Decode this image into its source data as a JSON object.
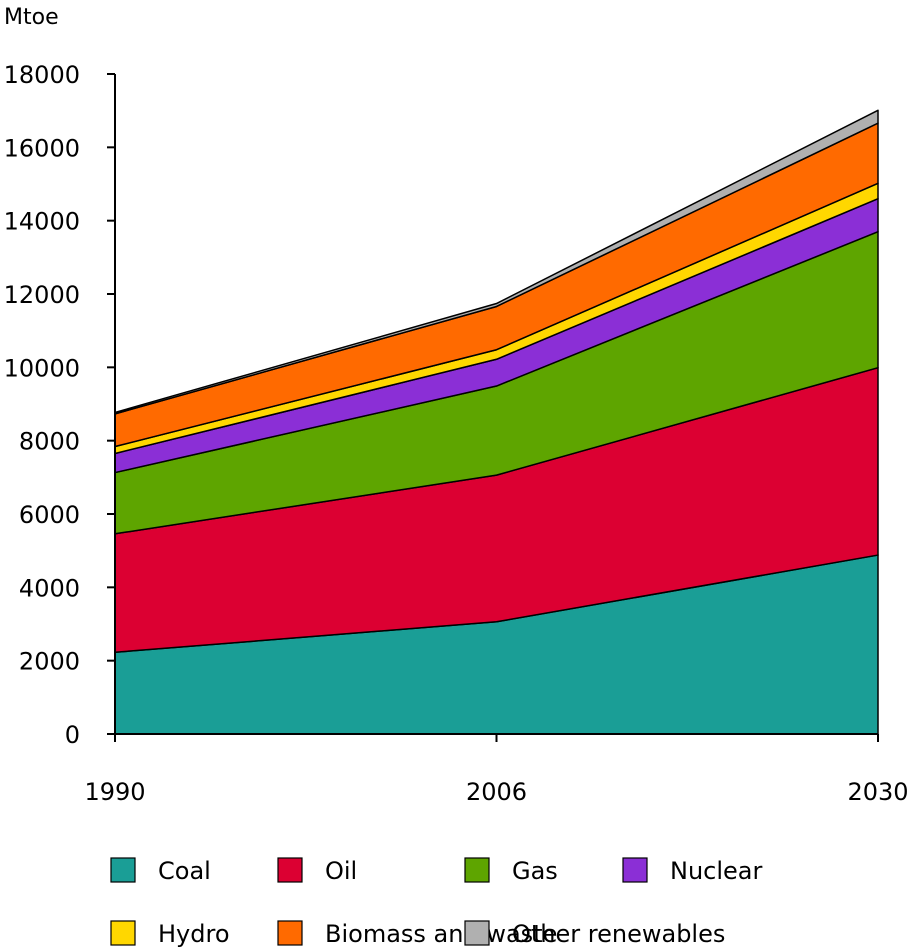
{
  "chart_data": {
    "type": "area",
    "stacked": true,
    "ylabel": "Mtoe",
    "x": [
      "1990",
      "2006",
      "2030"
    ],
    "ylim": [
      0,
      18000
    ],
    "yticks": [
      0,
      2000,
      4000,
      6000,
      8000,
      10000,
      12000,
      14000,
      16000,
      18000
    ],
    "series": [
      {
        "name": "Coal",
        "values": [
          2230,
          3060,
          4880
        ],
        "color": "#1a9e96"
      },
      {
        "name": "Oil",
        "values": [
          3230,
          4000,
          5110
        ],
        "color": "#dc0032"
      },
      {
        "name": "Gas",
        "values": [
          1670,
          2430,
          3710
        ],
        "color": "#5ea500"
      },
      {
        "name": "Nuclear",
        "values": [
          520,
          730,
          900
        ],
        "color": "#8b2fd6"
      },
      {
        "name": "Hydro",
        "values": [
          190,
          260,
          420
        ],
        "color": "#ffd700"
      },
      {
        "name": "Biomass and waste",
        "values": [
          890,
          1180,
          1640
        ],
        "color": "#ff6a00"
      },
      {
        "name": "Other renewables",
        "values": [
          40,
          80,
          350
        ],
        "color": "#b0b0b0"
      }
    ],
    "legend_position": "bottom"
  }
}
